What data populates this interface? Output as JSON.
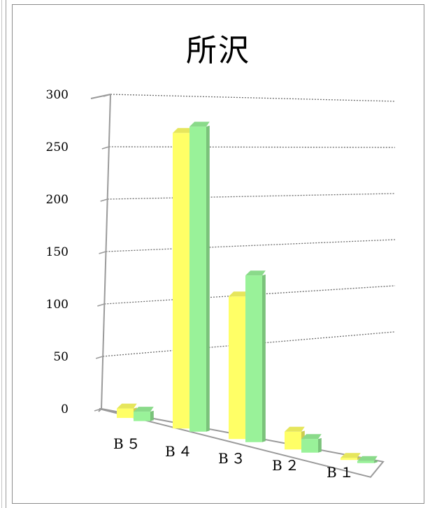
{
  "chart_data": {
    "type": "bar",
    "title": "所沢",
    "categories": [
      "B５",
      "B４",
      "B３",
      "B２",
      "B１"
    ],
    "series": [
      {
        "color": "#ffff66",
        "values": [
          9,
          282,
          136,
          17,
          2
        ]
      },
      {
        "color": "#99f299",
        "values": [
          9,
          291,
          159,
          13,
          2
        ]
      }
    ],
    "ylim": [
      0,
      300
    ],
    "yticks": [
      0,
      50,
      100,
      150,
      200,
      250,
      300
    ],
    "grid": true,
    "view": "3d-perspective"
  }
}
